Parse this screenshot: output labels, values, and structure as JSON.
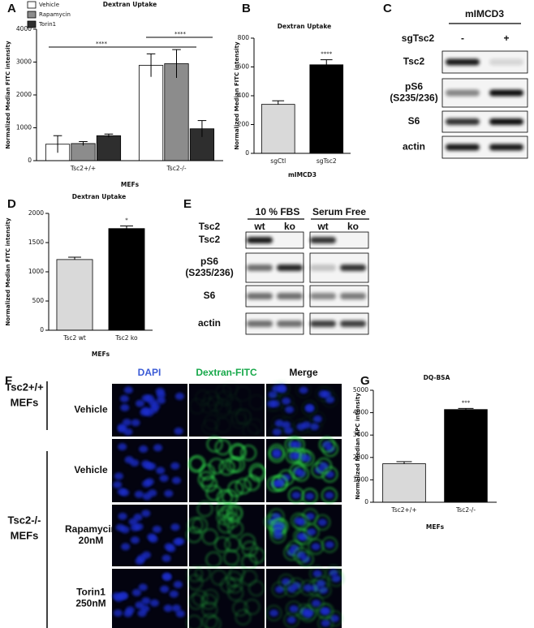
{
  "panel_labels": [
    "A",
    "B",
    "C",
    "D",
    "E",
    "F",
    "G"
  ],
  "chart_data": [
    {
      "type": "bar",
      "title": "Dextran Uptake",
      "y_label": "Normalized Median FITC intensity",
      "x_label": "MEFs",
      "categories": [
        "Tsc2+/+",
        "Tsc2-/-"
      ],
      "series": [
        {
          "name": "Vehicle",
          "color": "#ffffff",
          "values": [
            500,
            2900
          ],
          "errors": [
            260,
            350
          ]
        },
        {
          "name": "Rapamycin",
          "color": "#8c8c8c",
          "values": [
            520,
            2950
          ],
          "errors": [
            60,
            430
          ]
        },
        {
          "name": "Torin1",
          "color": "#2e2e2e",
          "values": [
            760,
            970
          ],
          "errors": [
            50,
            250
          ]
        }
      ],
      "ylim": [
        0,
        4000
      ],
      "yticks": [
        0,
        1000,
        2000,
        3000,
        4000
      ],
      "annotations": [
        "****",
        "****"
      ],
      "legend": "upper left"
    },
    {
      "type": "bar",
      "title": "Dextran Uptake",
      "y_label": "Normalized Median FITC intensity",
      "x_label": "mIMCD3",
      "categories": [
        "sgCtl",
        "sgTsc2"
      ],
      "values": [
        340,
        615
      ],
      "errors": [
        25,
        35
      ],
      "colors": [
        "#d9d9d9",
        "#000000"
      ],
      "ylim": [
        0,
        800
      ],
      "yticks": [
        0,
        200,
        400,
        600,
        800
      ],
      "annotations": [
        "****"
      ]
    },
    {
      "type": "bar",
      "title": "Dextran Uptake",
      "y_label": "Normalized Median FITC intensity",
      "x_label": "MEFs",
      "categories": [
        "Tsc2 wt",
        "Tsc2 ko"
      ],
      "values": [
        1210,
        1740
      ],
      "errors": [
        40,
        45
      ],
      "colors": [
        "#d9d9d9",
        "#000000"
      ],
      "ylim": [
        0,
        2000
      ],
      "yticks": [
        0,
        500,
        1000,
        1500,
        2000
      ],
      "annotations": [
        "*"
      ]
    },
    {
      "type": "bar",
      "title": "DQ-BSA",
      "y_label": "Normalized Median APC intensity",
      "x_label": "MEFs",
      "categories": [
        "Tsc2+/+",
        "Tsc2-/-"
      ],
      "values": [
        1720,
        4140
      ],
      "errors": [
        90,
        50
      ],
      "colors": [
        "#d9d9d9",
        "#000000"
      ],
      "ylim": [
        0,
        5000
      ],
      "yticks": [
        0,
        1000,
        2000,
        3000,
        4000,
        5000
      ],
      "annotations": [
        "***"
      ]
    }
  ],
  "blot_c": {
    "header": "mIMCD3",
    "condition": "sgTsc2",
    "lanes": [
      "-",
      "+"
    ],
    "rows": [
      [
        "Tsc2"
      ],
      [
        "pS6",
        "(S235/236)"
      ],
      [
        "S6"
      ],
      [
        "actin"
      ]
    ]
  },
  "blot_e": {
    "groups": [
      "10 % FBS",
      "Serum Free"
    ],
    "condition": "Tsc2",
    "lanes": [
      "wt",
      "ko",
      "wt",
      "ko"
    ],
    "rows": [
      [
        "Tsc2"
      ],
      [
        "pS6",
        "(S235/236)"
      ],
      [
        "S6"
      ],
      [
        "actin"
      ]
    ]
  },
  "imaging_f": {
    "columns": [
      "DAPI",
      "Dextran-FITC",
      "Merge"
    ],
    "groups": [
      [
        "Tsc2+/+",
        "MEFs"
      ],
      [
        "Tsc2-/-",
        "MEFs"
      ]
    ],
    "rows": [
      [
        "Vehicle"
      ],
      [
        "Vehicle"
      ],
      [
        "Rapamycin",
        "20nM"
      ],
      [
        "Torin1",
        "250nM"
      ]
    ]
  }
}
